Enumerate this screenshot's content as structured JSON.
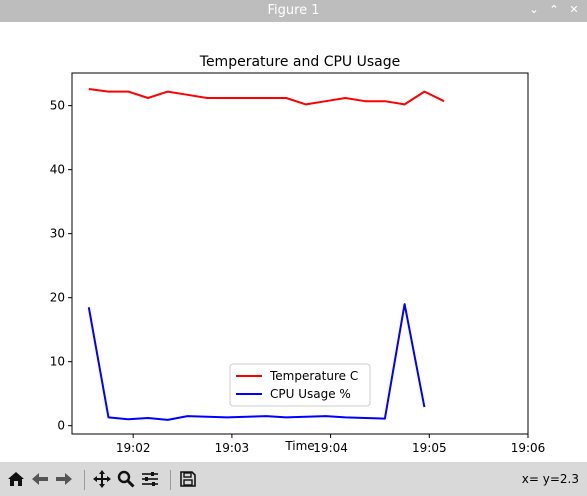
{
  "window": {
    "title": "Figure 1",
    "buttons": [
      "⌄",
      "⌃",
      "✕"
    ]
  },
  "toolbar": {
    "coords": "x= y=2.3",
    "icons": [
      "home-icon",
      "back-icon",
      "forward-icon",
      "pan-icon",
      "zoom-icon",
      "configure-subplots-icon",
      "save-icon"
    ]
  },
  "chart_data": {
    "type": "line",
    "title": "Temperature and CPU Usage",
    "xlabel": "Time",
    "ylabel": "",
    "x_ticks": [
      "19:02",
      "19:03",
      "19:04",
      "19:05",
      "19:06"
    ],
    "x_tick_minutes": [
      2,
      3,
      4,
      5,
      6
    ],
    "xlim": [
      1.38,
      6.0
    ],
    "y_ticks": [
      0,
      10,
      20,
      30,
      40,
      50
    ],
    "ylim": [
      -1.3,
      55.1
    ],
    "grid": false,
    "legend_position": "bottom-center",
    "x": [
      1.55,
      1.75,
      1.95,
      2.15,
      2.35,
      2.55,
      2.75,
      2.95,
      3.15,
      3.35,
      3.55,
      3.75,
      3.95,
      4.15,
      4.35,
      4.55,
      4.75,
      4.95,
      5.15,
      5.35,
      5.55
    ],
    "series": [
      {
        "name": "Temperature C",
        "color": "#ff0000",
        "values": [
          52.6,
          52.2,
          52.2,
          51.2,
          52.2,
          51.7,
          51.2,
          51.2,
          51.2,
          51.2,
          51.2,
          50.2,
          50.7,
          51.2,
          50.7,
          50.7,
          50.2,
          52.2,
          50.7,
          null,
          null
        ]
      },
      {
        "name": "CPU Usage %",
        "color": "#0000ff",
        "values": [
          18.5,
          1.3,
          1.0,
          1.2,
          0.9,
          1.5,
          1.4,
          1.3,
          1.4,
          1.5,
          1.3,
          1.4,
          1.5,
          1.3,
          1.2,
          1.1,
          19.0,
          2.9,
          null,
          null,
          null
        ]
      }
    ]
  }
}
